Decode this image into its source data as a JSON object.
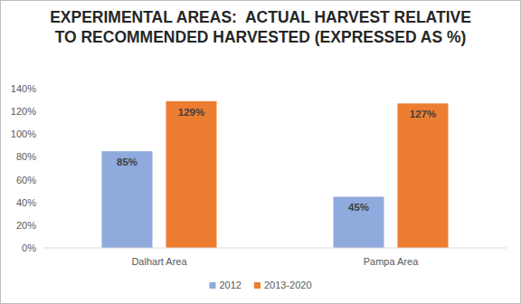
{
  "chart_data": {
    "type": "bar",
    "title": "EXPERIMENTAL AREAS:  ACTUAL HARVEST RELATIVE TO RECOMMENDED HARVESTED (EXPRESSED AS %)",
    "categories": [
      "Dalhart Area",
      "Pampa Area"
    ],
    "series": [
      {
        "name": "2012",
        "color": "#8faadc",
        "values": [
          85,
          45
        ],
        "value_labels": [
          "85%",
          "45%"
        ]
      },
      {
        "name": "2013-2020",
        "color": "#ed7d31",
        "values": [
          129,
          127
        ],
        "value_labels": [
          "129%",
          "127%"
        ]
      }
    ],
    "ylim": [
      0,
      140
    ],
    "yticks": [
      {
        "value": 0,
        "label": "0%"
      },
      {
        "value": 20,
        "label": "20%"
      },
      {
        "value": 40,
        "label": "40%"
      },
      {
        "value": 60,
        "label": "60%"
      },
      {
        "value": 80,
        "label": "80%"
      },
      {
        "value": 100,
        "label": "100%"
      },
      {
        "value": 120,
        "label": "120%"
      },
      {
        "value": 140,
        "label": "140%"
      }
    ],
    "grid": false,
    "legend": "bottom",
    "data_labels": true
  }
}
